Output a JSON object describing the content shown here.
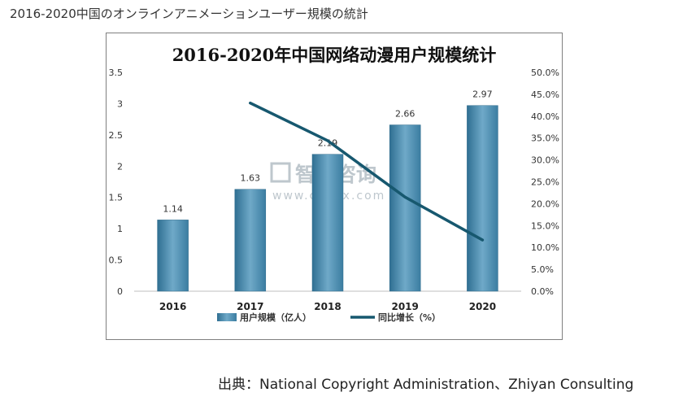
{
  "page": {
    "heading": "2016-2020中国のオンラインアニメーションユーザー規模の統計",
    "source": "出典：National Copyright Administration、Zhiyan Consulting"
  },
  "watermark": {
    "brand": "智研咨询",
    "url": "www.chyxx.com"
  },
  "colors": {
    "bar": "#4f8cad",
    "line": "#17586f"
  },
  "chart_data": {
    "type": "bar",
    "title": "2016-2020年中国网络动漫用户规模统计",
    "categories": [
      "2016",
      "2017",
      "2018",
      "2019",
      "2020"
    ],
    "series": [
      {
        "name": "用户规模（亿人）",
        "type": "bar",
        "axis": "left",
        "values": [
          1.14,
          1.63,
          2.19,
          2.66,
          2.97
        ],
        "data_labels": [
          "1.14",
          "1.63",
          "2.19",
          "2.66",
          "2.97"
        ]
      },
      {
        "name": "同比增长（%）",
        "type": "line",
        "axis": "right",
        "x": [
          "2017",
          "2018",
          "2019",
          "2020"
        ],
        "values": [
          43.0,
          34.4,
          21.5,
          11.7
        ]
      }
    ],
    "y_left": {
      "min": 0,
      "max": 3.5,
      "ticks": [
        "0",
        "0.5",
        "1",
        "1.5",
        "2",
        "2.5",
        "3",
        "3.5"
      ]
    },
    "y_right": {
      "min": 0,
      "max": 50,
      "ticks": [
        "0.0%",
        "5.0%",
        "10.0%",
        "15.0%",
        "20.0%",
        "25.0%",
        "30.0%",
        "35.0%",
        "40.0%",
        "45.0%",
        "50.0%"
      ]
    },
    "grid": false,
    "legend_position": "bottom"
  }
}
